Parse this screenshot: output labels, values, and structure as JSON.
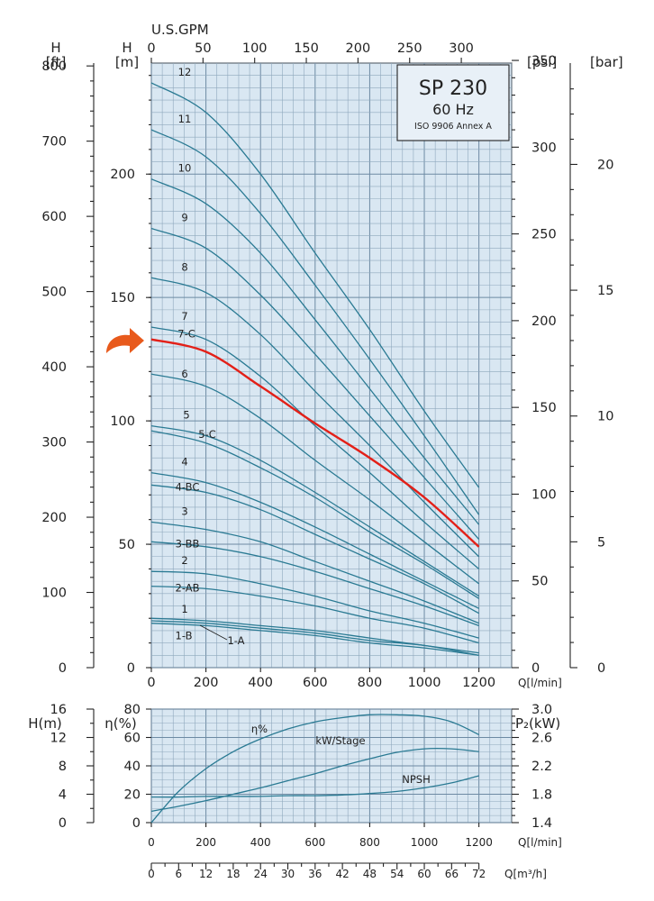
{
  "chart_data": [
    {
      "type": "line",
      "title": "SP 230",
      "subtitle": "60 Hz",
      "note": "ISO 9906 Annex A",
      "xlabel": "Q[l/min]",
      "xlim": [
        0,
        1320
      ],
      "x_ticks": [
        0,
        200,
        400,
        600,
        800,
        1000,
        1200
      ],
      "top_axis": {
        "label": "U.S.GPM",
        "ticks": [
          0,
          50,
          100,
          150,
          200,
          250,
          300
        ]
      },
      "ylabel": "H\n[m]",
      "ylim": [
        0,
        245
      ],
      "y_ticks": [
        0,
        50,
        100,
        150,
        200
      ],
      "left_axis_ft": {
        "label": "H\n[ft]",
        "ticks": [
          0,
          100,
          200,
          300,
          400,
          500,
          600,
          700,
          800
        ]
      },
      "right_axis_psi": {
        "label": "[psi]",
        "ticks": [
          0,
          50,
          100,
          150,
          200,
          250,
          300,
          350
        ]
      },
      "right_axis_bar": {
        "label": "[bar]",
        "ticks": [
          0,
          5,
          10,
          15,
          20
        ]
      },
      "grid": true,
      "highlighted_series": "7-C",
      "x": [
        0,
        200,
        400,
        600,
        800,
        1000,
        1200
      ],
      "series": [
        {
          "name": "12",
          "values": [
            237,
            225,
            200,
            168,
            137,
            104,
            73
          ]
        },
        {
          "name": "11",
          "values": [
            218,
            207,
            184,
            155,
            125,
            94,
            62
          ]
        },
        {
          "name": "10",
          "values": [
            198,
            188,
            168,
            141,
            113,
            85,
            58
          ]
        },
        {
          "name": "9",
          "values": [
            178,
            170,
            151,
            127,
            102,
            77,
            52
          ]
        },
        {
          "name": "8",
          "values": [
            158,
            152,
            135,
            112,
            90,
            67,
            45
          ]
        },
        {
          "name": "7",
          "values": [
            138,
            133,
            118,
            98,
            79,
            59,
            40
          ]
        },
        {
          "name": "7-C",
          "values": [
            133,
            128,
            114,
            99,
            85,
            69,
            49
          ]
        },
        {
          "name": "6",
          "values": [
            119,
            114,
            101,
            84,
            68,
            51,
            34
          ]
        },
        {
          "name": "5",
          "values": [
            98,
            94,
            84,
            71,
            57,
            43,
            29
          ]
        },
        {
          "name": "5-C",
          "values": [
            96,
            91,
            81,
            69,
            55,
            42,
            28
          ]
        },
        {
          "name": "4",
          "values": [
            79,
            75,
            67,
            57,
            46,
            35,
            24
          ]
        },
        {
          "name": "4-BC",
          "values": [
            74,
            71,
            64,
            54,
            44,
            34,
            22
          ]
        },
        {
          "name": "3",
          "values": [
            59,
            56,
            51,
            43,
            35,
            27,
            18
          ]
        },
        {
          "name": "3-BB",
          "values": [
            51,
            49,
            45,
            39,
            32,
            25,
            17
          ]
        },
        {
          "name": "2",
          "values": [
            39,
            38,
            34,
            29,
            23,
            18,
            12
          ]
        },
        {
          "name": "2-AB",
          "values": [
            33,
            32,
            29,
            25,
            20,
            16,
            10
          ]
        },
        {
          "name": "1",
          "values": [
            20,
            19,
            17,
            15,
            12,
            9,
            6
          ]
        },
        {
          "name": "1-B",
          "values": [
            18,
            17,
            15,
            13,
            10,
            8,
            5
          ]
        },
        {
          "name": "1-A",
          "values": [
            19,
            18,
            16,
            14,
            11,
            9,
            5
          ]
        }
      ]
    },
    {
      "type": "line",
      "xlabel": "Q[l/min]",
      "xlim": [
        0,
        1320
      ],
      "x_ticks": [
        0,
        200,
        400,
        600,
        800,
        1000,
        1200
      ],
      "bottom_axis_m3h": {
        "label": "Q[m³/h]",
        "ticks": [
          0,
          6,
          12,
          18,
          24,
          30,
          36,
          42,
          48,
          54,
          60,
          66,
          72
        ]
      },
      "left_axis_h": {
        "label": "H(m)",
        "ticks": [
          0,
          4,
          8,
          12,
          16
        ]
      },
      "left_axis_eta": {
        "label": "η(%)",
        "ticks": [
          0,
          20,
          40,
          60,
          80
        ],
        "ylim": [
          0,
          80
        ]
      },
      "right_axis_p2": {
        "label": "P₂(kW)",
        "ticks": [
          "1.4",
          "1.8",
          "2.2",
          "2.6",
          "3.0"
        ]
      },
      "grid": true,
      "x": [
        0,
        100,
        200,
        300,
        400,
        500,
        600,
        700,
        800,
        900,
        1000,
        1100,
        1200
      ],
      "series": [
        {
          "name": "η%",
          "axis": "eta",
          "values": [
            0,
            22,
            38,
            50,
            59,
            66,
            71,
            74,
            76,
            76,
            75,
            71,
            62
          ]
        },
        {
          "name": "kW/Stage",
          "axis": "p2",
          "values": [
            1.56,
            1.63,
            1.71,
            1.8,
            1.89,
            1.99,
            2.09,
            2.2,
            2.3,
            2.39,
            2.44,
            2.44,
            2.4
          ]
        },
        {
          "name": "NPSH",
          "axis": "h",
          "values": [
            3.6,
            3.6,
            3.7,
            3.7,
            3.7,
            3.8,
            3.8,
            3.9,
            4.1,
            4.4,
            4.9,
            5.6,
            6.6
          ]
        }
      ]
    }
  ]
}
